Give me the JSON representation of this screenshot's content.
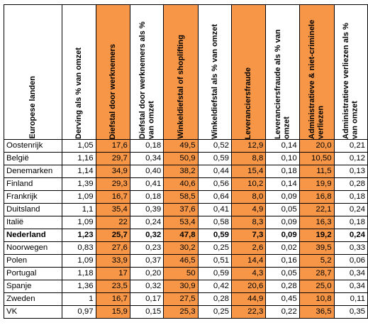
{
  "table": {
    "headers": [
      {
        "label": "Europese landen",
        "highlight": false
      },
      {
        "label": "Derving als % van omzet",
        "highlight": false
      },
      {
        "label": "Diefstal door werknemers",
        "highlight": true
      },
      {
        "label": "Diefstal door werknemers als % van omzet",
        "highlight": false
      },
      {
        "label": "Winkeldiefstal of shoplifting",
        "highlight": true
      },
      {
        "label": "Winkeldiefstal als % van omzet",
        "highlight": false
      },
      {
        "label": "Leveranciersfraude",
        "highlight": true
      },
      {
        "label": "Leveranciersfraude als % van omzet",
        "highlight": false
      },
      {
        "label": "Administratieve & niet-criminele verliezen",
        "highlight": true
      },
      {
        "label": "Administratieve verliezen als % van omzet",
        "highlight": false
      }
    ],
    "rows": [
      {
        "cells": [
          "Oostenrijk",
          "1,05",
          "17,6",
          "0,18",
          "49,5",
          "0,52",
          "12,9",
          "0,14",
          "20,0",
          "0,21"
        ],
        "bold": false
      },
      {
        "cells": [
          "België",
          "1,16",
          "29,7",
          "0,34",
          "50,9",
          "0,59",
          "8,8",
          "0,10",
          "10,50",
          "0,12"
        ],
        "bold": false
      },
      {
        "cells": [
          "Denemarken",
          "1,14",
          "34,9",
          "0,40",
          "38,2",
          "0,44",
          "15,4",
          "0,18",
          "11,5",
          "0,13"
        ],
        "bold": false
      },
      {
        "cells": [
          "Finland",
          "1,39",
          "29,3",
          "0,41",
          "40,6",
          "0,56",
          "10,2",
          "0,14",
          "19,9",
          "0,28"
        ],
        "bold": false
      },
      {
        "cells": [
          "Frankrijk",
          "1,09",
          "16,7",
          "0,18",
          "58,5",
          "0,64",
          "8,0",
          "0,09",
          "16,8",
          "0,18"
        ],
        "bold": false
      },
      {
        "cells": [
          "Duitsland",
          "1,1",
          "35,4",
          "0,39",
          "37,6",
          "0,41",
          "4,9",
          "0,05",
          "22,1",
          "0,24"
        ],
        "bold": false
      },
      {
        "cells": [
          "Italië",
          "1,09",
          "22",
          "0,24",
          "53,4",
          "0,58",
          "8,3",
          "0,09",
          "16,3",
          "0,18"
        ],
        "bold": false
      },
      {
        "cells": [
          "Nederland",
          "1,23",
          "25,7",
          "0,32",
          "47,8",
          "0,59",
          "7,3",
          "0,09",
          "19,2",
          "0,24"
        ],
        "bold": true
      },
      {
        "cells": [
          "Noorwegen",
          "0,83",
          "27,6",
          "0,23",
          "30,2",
          "0,25",
          "2,6",
          "0,02",
          "39,5",
          "0,33"
        ],
        "bold": false
      },
      {
        "cells": [
          "Polen",
          "1,09",
          "33,9",
          "0,37",
          "46,5",
          "0,51",
          "14,4",
          "0,16",
          "5,2",
          "0,06"
        ],
        "bold": false
      },
      {
        "cells": [
          "Portugal",
          "1,18",
          "17",
          "0,20",
          "50",
          "0,59",
          "4,3",
          "0,05",
          "28,7",
          "0,34"
        ],
        "bold": false
      },
      {
        "cells": [
          "Spanje",
          "1,36",
          "23,5",
          "0,32",
          "30,9",
          "0,42",
          "20,6",
          "0,28",
          "25,0",
          "0,34"
        ],
        "bold": false
      },
      {
        "cells": [
          "Zweden",
          "1",
          "16,7",
          "0,17",
          "27,5",
          "0,28",
          "44,9",
          "0,45",
          "10,8",
          "0,11"
        ],
        "bold": false
      },
      {
        "cells": [
          "VK",
          "0,97",
          "15,9",
          "0,15",
          "25,3",
          "0,25",
          "22,3",
          "0,22",
          "36,5",
          "0,35"
        ],
        "bold": false
      }
    ],
    "highlight_color": "#f79646"
  }
}
